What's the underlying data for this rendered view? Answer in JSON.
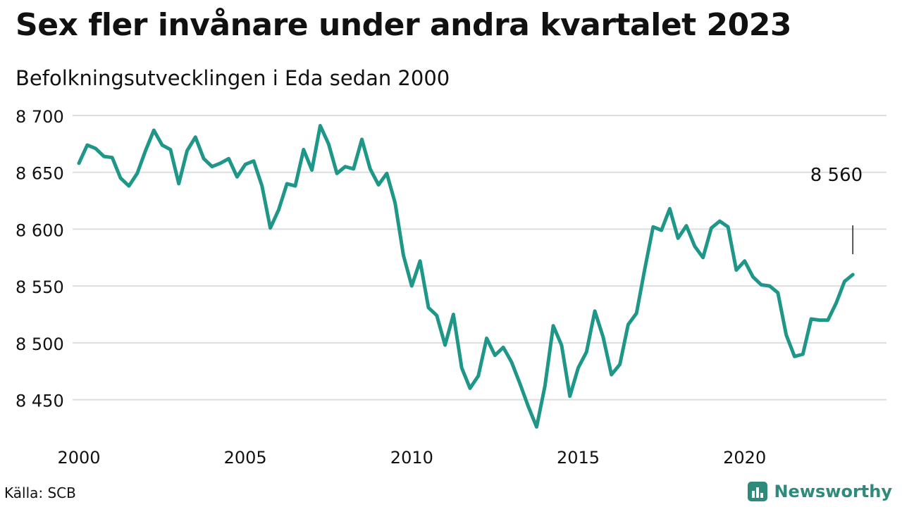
{
  "title": "Sex fler invånare under andra kvartalet 2023",
  "subtitle": "Befolkningsutvecklingen i Eda sedan 2000",
  "source": "Källa: SCB",
  "brand": "Newsworthy",
  "colors": {
    "line": "#1e9688",
    "grid": "#dddddd",
    "text": "#111111",
    "brand": "#2e8b7b"
  },
  "chart_data": {
    "type": "line",
    "x_tick_labels": [
      "2000",
      "2005",
      "2010",
      "2015",
      "2020"
    ],
    "y_tick_labels": [
      "8 450",
      "8 500",
      "8 550",
      "8 600",
      "8 650",
      "8 700"
    ],
    "y_ticks": [
      8450,
      8500,
      8550,
      8600,
      8650,
      8700
    ],
    "xlim": [
      2000,
      2023.5
    ],
    "ylim": [
      8420,
      8700
    ],
    "grid": true,
    "last_value_label": "8 560",
    "series": [
      {
        "x": [
          2000.0,
          2000.25,
          2000.5,
          2000.75,
          2001.0,
          2001.25,
          2001.5,
          2001.75,
          2002.0,
          2002.25,
          2002.5,
          2002.75,
          2003.0,
          2003.25,
          2003.5,
          2003.75,
          2004.0,
          2004.25,
          2004.5,
          2004.75,
          2005.0,
          2005.25,
          2005.5,
          2005.75,
          2006.0,
          2006.25,
          2006.5,
          2006.75,
          2007.0,
          2007.25,
          2007.5,
          2007.75,
          2008.0,
          2008.25,
          2008.5,
          2008.75,
          2009.0,
          2009.25,
          2009.5,
          2009.75,
          2010.0,
          2010.25,
          2010.5,
          2010.75,
          2011.0,
          2011.25,
          2011.5,
          2011.75,
          2012.0,
          2012.25,
          2012.5,
          2012.75,
          2013.0,
          2013.25,
          2013.5,
          2013.75,
          2014.0,
          2014.25,
          2014.5,
          2014.75,
          2015.0,
          2015.25,
          2015.5,
          2015.75,
          2016.0,
          2016.25,
          2016.5,
          2016.75,
          2017.0,
          2017.25,
          2017.5,
          2017.75,
          2018.0,
          2018.25,
          2018.5,
          2018.75,
          2019.0,
          2019.25,
          2019.5,
          2019.75,
          2020.0,
          2020.25,
          2020.5,
          2020.75,
          2021.0,
          2021.25,
          2021.5,
          2021.75,
          2022.0,
          2022.25,
          2022.5,
          2022.75,
          2023.0,
          2023.25
        ],
        "values": [
          8658,
          8674,
          8671,
          8664,
          8663,
          8645,
          8638,
          8649,
          8669,
          8687,
          8674,
          8670,
          8640,
          8669,
          8681,
          8662,
          8655,
          8658,
          8662,
          8646,
          8657,
          8660,
          8638,
          8601,
          8617,
          8640,
          8638,
          8670,
          8652,
          8691,
          8675,
          8649,
          8655,
          8653,
          8679,
          8653,
          8639,
          8649,
          8623,
          8577,
          8550,
          8572,
          8531,
          8524,
          8498,
          8525,
          8478,
          8460,
          8471,
          8504,
          8489,
          8496,
          8483,
          8464,
          8444,
          8426,
          8462,
          8515,
          8498,
          8453,
          8478,
          8492,
          8528,
          8505,
          8472,
          8481,
          8516,
          8526,
          8565,
          8602,
          8599,
          8618,
          8592,
          8603,
          8585,
          8575,
          8601,
          8607,
          8602,
          8564,
          8572,
          8558,
          8551,
          8550,
          8544,
          8507,
          8488,
          8490,
          8521,
          8520,
          8520,
          8535,
          8554,
          8560
        ]
      }
    ]
  }
}
